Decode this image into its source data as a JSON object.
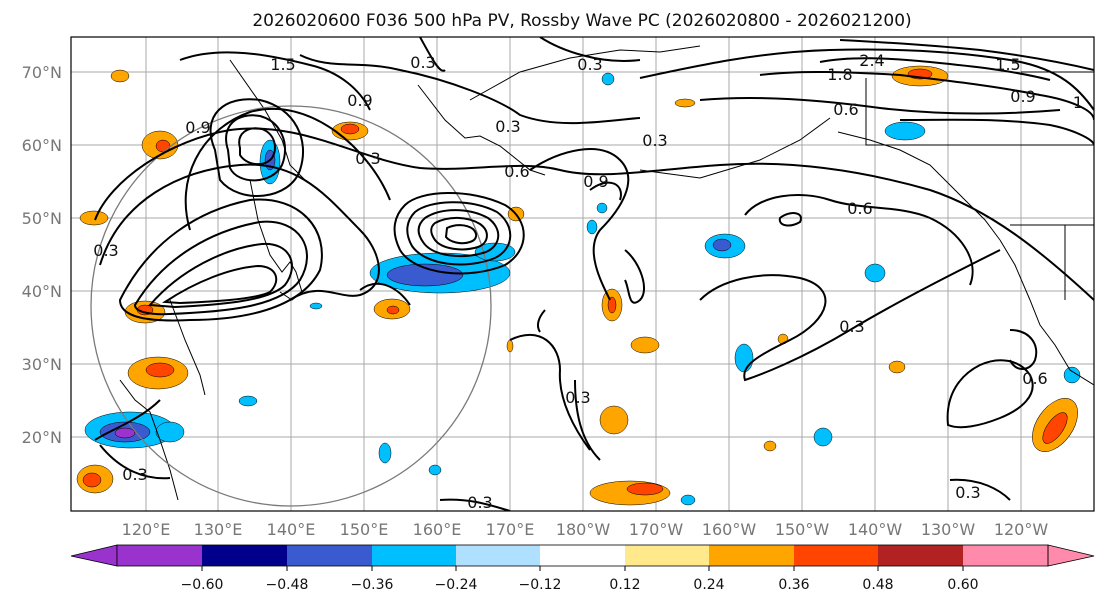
{
  "title": "2026020600 F036 500 hPa PV, Rossby Wave PC (2026020800 - 2026021200)",
  "map": {
    "lon_labels": [
      "120°E",
      "130°E",
      "140°E",
      "150°E",
      "160°E",
      "170°E",
      "180°W",
      "170°W",
      "160°W",
      "150°W",
      "140°W",
      "130°W",
      "120°W"
    ],
    "lat_labels": [
      "70°N",
      "60°N",
      "50°N",
      "40°N",
      "30°N",
      "20°N"
    ]
  },
  "colorbar": {
    "ticks": [
      "−0.60",
      "−0.48",
      "−0.36",
      "−0.24",
      "−0.12",
      "0.12",
      "0.24",
      "0.36",
      "0.48",
      "0.60"
    ],
    "colors": [
      "#9a32cd",
      "#00008b",
      "#3a5bcf",
      "#00bfff",
      "#b0e0ff",
      "#ffffff",
      "#ffe98a",
      "#ffa500",
      "#ff4500",
      "#b22222",
      "#ff8aab"
    ]
  },
  "contour_labels": [
    "1.5",
    "0.3",
    "0.3",
    "2.4",
    "1.8",
    "1.5",
    "0.9",
    "1",
    "0.6",
    "0.9",
    "0.3",
    "0.3",
    "0.3",
    "0.9",
    "0.6",
    "0.9",
    "0.6",
    "0.3",
    "0.3",
    "0.6",
    "0.3",
    "0.3",
    "0.3",
    "0.3"
  ]
}
